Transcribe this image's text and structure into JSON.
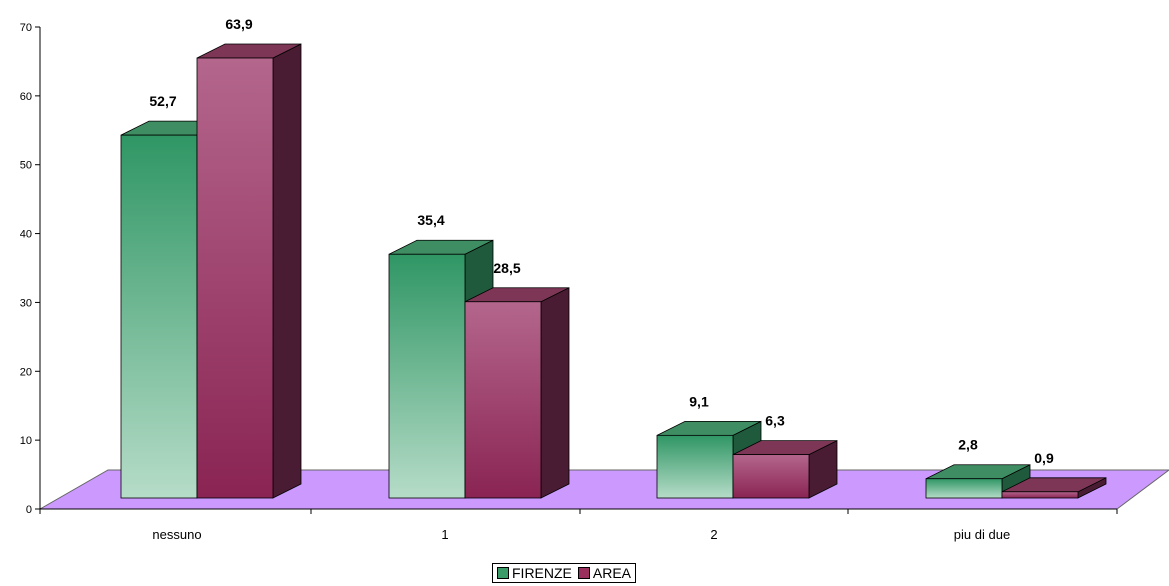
{
  "chart_data": {
    "type": "bar",
    "categories": [
      "nessuno",
      "1",
      "2",
      "piu di due"
    ],
    "series": [
      {
        "name": "FIRENZE",
        "values": [
          52.7,
          35.4,
          9.1,
          2.8
        ],
        "labels": [
          "52,7",
          "35,4",
          "9,1",
          "2,8"
        ],
        "color": "#3a9a68"
      },
      {
        "name": "AREA",
        "values": [
          63.9,
          28.5,
          6.3,
          0.9
        ],
        "labels": [
          "63,9",
          "28,5",
          "6,3",
          "0,9"
        ],
        "color": "#9a2f5e"
      }
    ],
    "yticks": [
      "0",
      "10",
      "20",
      "30",
      "40",
      "50",
      "60",
      "70"
    ],
    "ylim": [
      0,
      70
    ],
    "floor_color": "#cc99ff",
    "grid": false,
    "legend_position": "bottom"
  }
}
